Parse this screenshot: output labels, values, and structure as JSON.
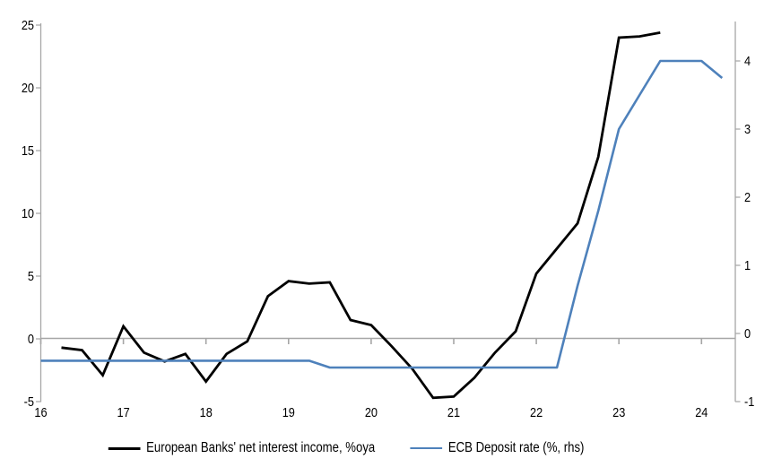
{
  "chart_data": {
    "type": "line",
    "title": "",
    "grid": "zero-line-only",
    "legend_position": "bottom",
    "axis_color": "#A6A6A6",
    "x_axis": {
      "tick_labels": [
        "16",
        "17",
        "18",
        "19",
        "20",
        "21",
        "22",
        "23",
        "24"
      ],
      "tick_values": [
        16,
        17,
        18,
        19,
        20,
        21,
        22,
        23,
        24
      ],
      "range": [
        16,
        24.42
      ]
    },
    "left_y_axis": {
      "tick_labels": [
        "25",
        "20",
        "15",
        "10",
        "5",
        "0",
        "-5"
      ],
      "tick_values": [
        25,
        20,
        15,
        10,
        5,
        0,
        -5
      ],
      "range": [
        -5,
        25
      ]
    },
    "right_y_axis": {
      "tick_labels": [
        "4",
        "3",
        "2",
        "1",
        "0",
        "-1"
      ],
      "tick_values": [
        4,
        3,
        2,
        1,
        0,
        -1
      ],
      "range": [
        -1,
        4.55
      ]
    },
    "series": [
      {
        "name": "European Banks' net interest income, %oya",
        "axis": "left",
        "color": "#000000",
        "stroke_width": 2.8,
        "x": [
          16.25,
          16.5,
          16.75,
          17.0,
          17.25,
          17.5,
          17.75,
          18.0,
          18.25,
          18.5,
          18.75,
          19.0,
          19.25,
          19.5,
          19.75,
          20.0,
          20.25,
          20.5,
          20.75,
          21.0,
          21.25,
          21.5,
          21.75,
          22.0,
          22.25,
          22.5,
          22.75,
          23.0,
          23.25,
          23.5
        ],
        "values": [
          -0.7,
          -0.9,
          -2.9,
          1.0,
          -1.1,
          -1.8,
          -1.2,
          -3.4,
          -1.2,
          -0.2,
          3.4,
          4.6,
          4.4,
          4.5,
          1.5,
          1.1,
          -0.6,
          -2.4,
          -4.7,
          -4.6,
          -3.1,
          -1.1,
          0.6,
          5.2,
          7.2,
          9.2,
          14.5,
          24.0,
          24.1,
          24.4
        ]
      },
      {
        "name": "ECB Deposit rate (%, rhs)",
        "axis": "right",
        "color": "#4E81BB",
        "stroke_width": 2.6,
        "x": [
          16.0,
          16.25,
          16.5,
          16.75,
          17.0,
          17.25,
          17.5,
          17.75,
          18.0,
          18.25,
          18.5,
          18.75,
          19.0,
          19.25,
          19.5,
          19.75,
          20.0,
          20.25,
          20.5,
          20.75,
          21.0,
          21.25,
          21.5,
          21.75,
          22.0,
          22.25,
          22.5,
          22.75,
          23.0,
          23.25,
          23.5,
          23.75,
          24.0,
          24.25
        ],
        "values": [
          -0.4,
          -0.4,
          -0.4,
          -0.4,
          -0.4,
          -0.4,
          -0.4,
          -0.4,
          -0.4,
          -0.4,
          -0.4,
          -0.4,
          -0.4,
          -0.4,
          -0.5,
          -0.5,
          -0.5,
          -0.5,
          -0.5,
          -0.5,
          -0.5,
          -0.5,
          -0.5,
          -0.5,
          -0.5,
          -0.5,
          0.7,
          1.8,
          3.0,
          3.5,
          4.0,
          4.0,
          4.0,
          3.75
        ]
      }
    ]
  }
}
